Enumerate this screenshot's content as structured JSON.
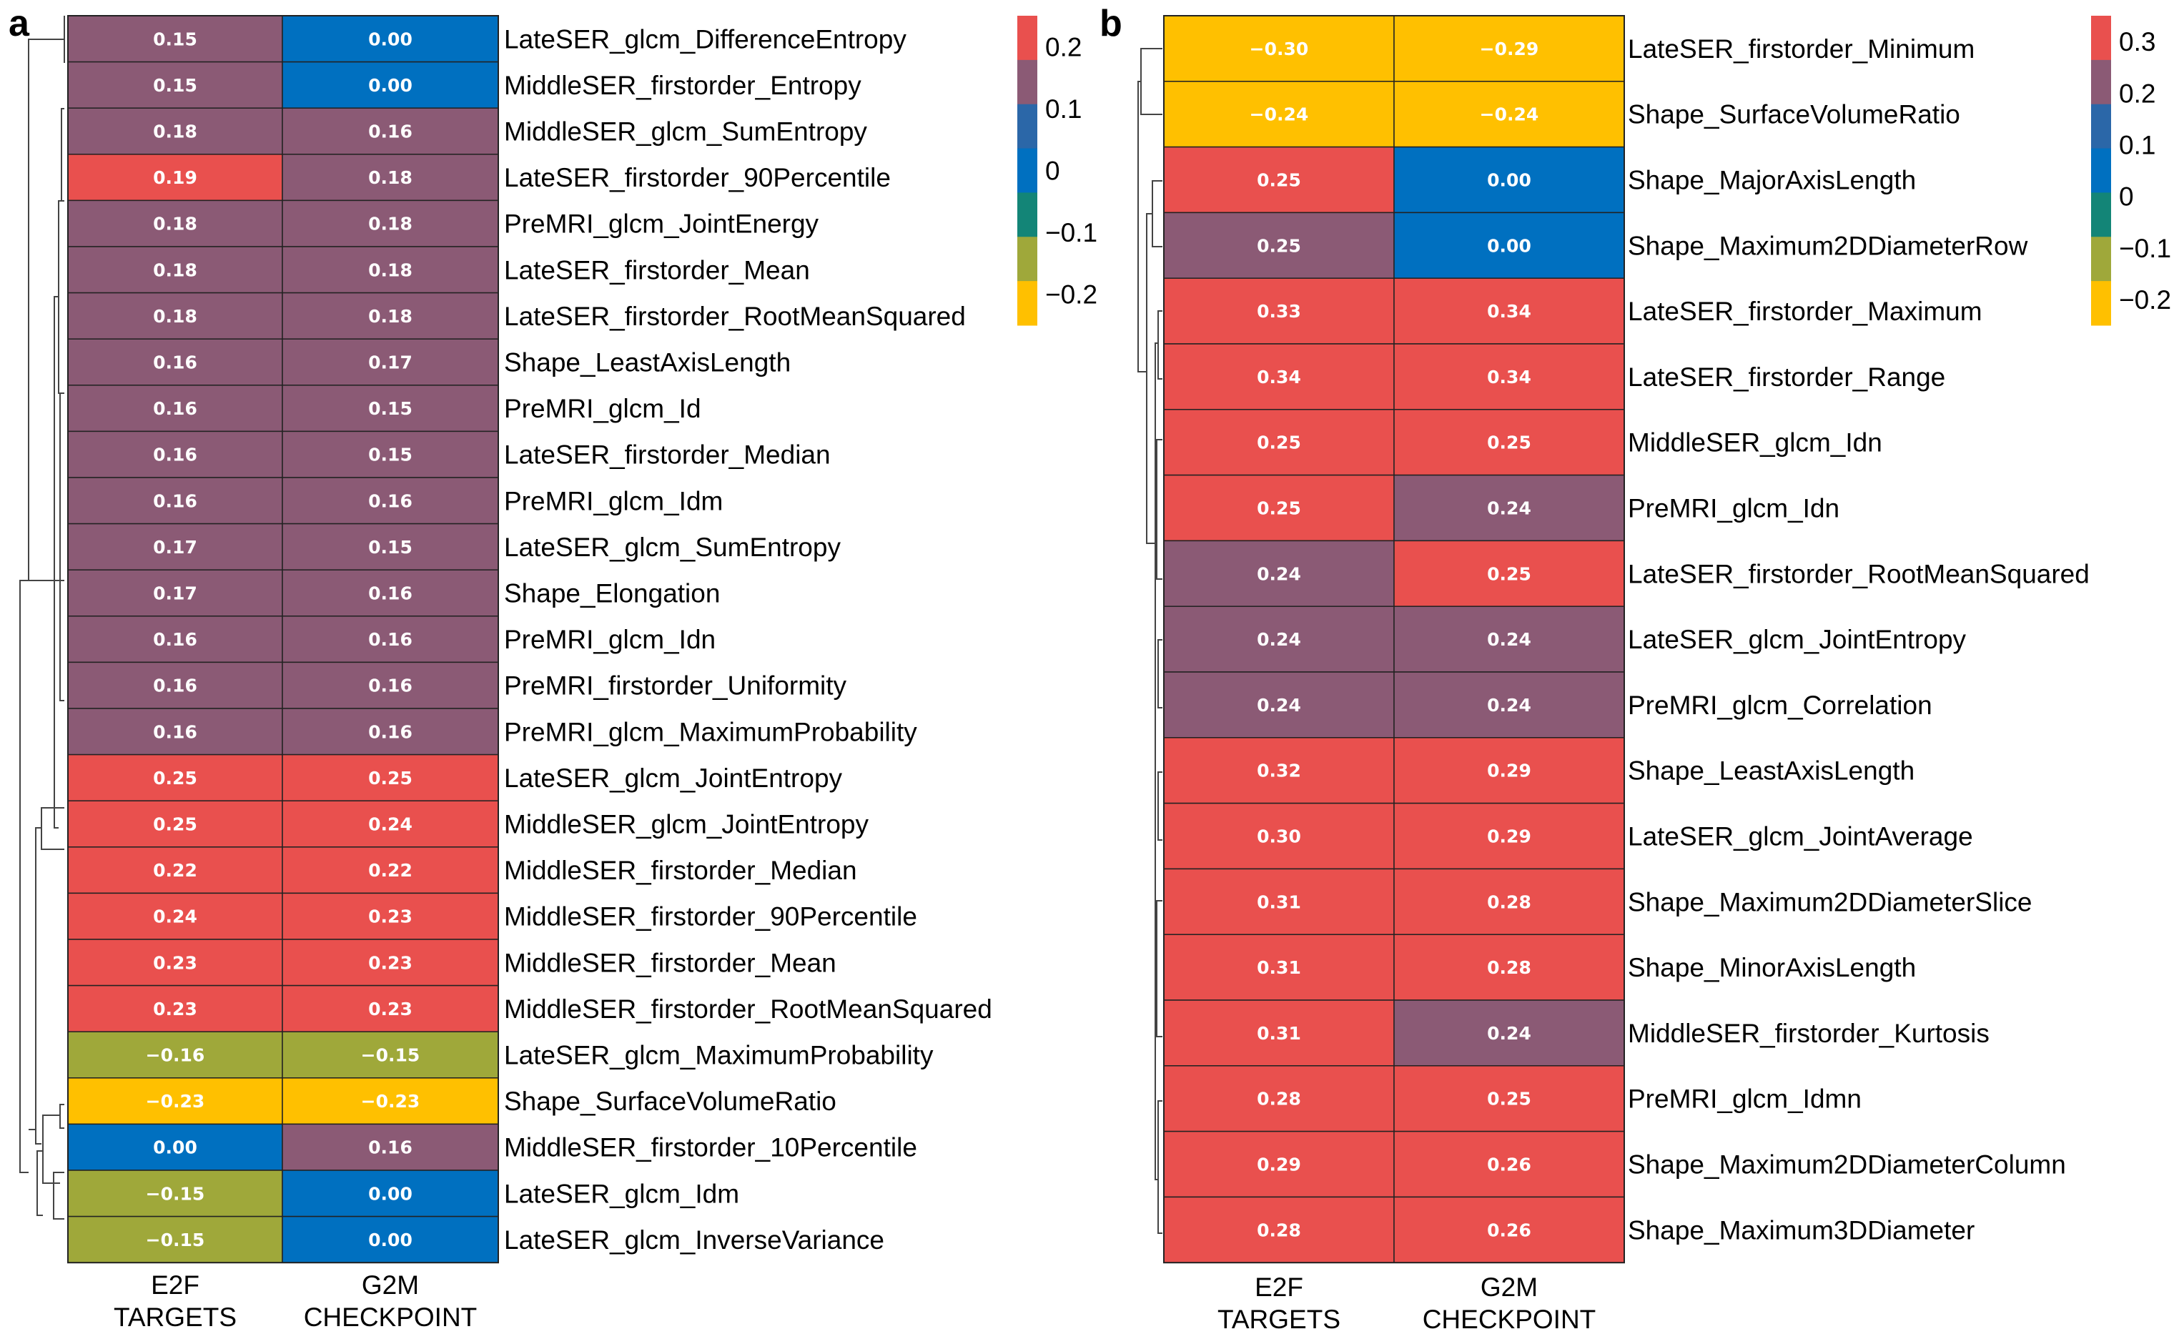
{
  "colors": {
    "lo2": "#FFC000",
    "lo1": "#9FA83A",
    "mid": "#138577",
    "zero": "#0070C0",
    "pos1": "#2B67A8",
    "pos2": "#8B5A75",
    "hi": "#E9504E"
  },
  "chart_data": [
    {
      "type": "heatmap",
      "panel": "a",
      "columns": [
        "E2F TARGETS",
        "G2M CHECKPOINT"
      ],
      "column_lines": [
        [
          "E2F",
          "TARGETS"
        ],
        [
          "G2M",
          "CHECKPOINT"
        ]
      ],
      "rows": [
        {
          "label": "LateSER_glcm_DifferenceEntropy",
          "values": [
            0.15,
            0.0
          ],
          "text": [
            "0.15",
            "0.00"
          ],
          "colors": [
            "pos2",
            "zero"
          ]
        },
        {
          "label": "MiddleSER_firstorder_Entropy",
          "values": [
            0.15,
            0.0
          ],
          "text": [
            "0.15",
            "0.00"
          ],
          "colors": [
            "pos2",
            "zero"
          ]
        },
        {
          "label": "MiddleSER_glcm_SumEntropy",
          "values": [
            0.18,
            0.16
          ],
          "text": [
            "0.18",
            "0.16"
          ],
          "colors": [
            "pos2",
            "pos2"
          ]
        },
        {
          "label": "LateSER_firstorder_90Percentile",
          "values": [
            0.19,
            0.18
          ],
          "text": [
            "0.19",
            "0.18"
          ],
          "colors": [
            "hi",
            "pos2"
          ]
        },
        {
          "label": "PreMRI_glcm_JointEnergy",
          "values": [
            0.18,
            0.18
          ],
          "text": [
            "0.18",
            "0.18"
          ],
          "colors": [
            "pos2",
            "pos2"
          ]
        },
        {
          "label": "LateSER_firstorder_Mean",
          "values": [
            0.18,
            0.18
          ],
          "text": [
            "0.18",
            "0.18"
          ],
          "colors": [
            "pos2",
            "pos2"
          ]
        },
        {
          "label": "LateSER_firstorder_RootMeanSquared",
          "values": [
            0.18,
            0.18
          ],
          "text": [
            "0.18",
            "0.18"
          ],
          "colors": [
            "pos2",
            "pos2"
          ]
        },
        {
          "label": "Shape_LeastAxisLength",
          "values": [
            0.16,
            0.17
          ],
          "text": [
            "0.16",
            "0.17"
          ],
          "colors": [
            "pos2",
            "pos2"
          ]
        },
        {
          "label": "PreMRI_glcm_Id",
          "values": [
            0.16,
            0.15
          ],
          "text": [
            "0.16",
            "0.15"
          ],
          "colors": [
            "pos2",
            "pos2"
          ]
        },
        {
          "label": "LateSER_firstorder_Median",
          "values": [
            0.16,
            0.15
          ],
          "text": [
            "0.16",
            "0.15"
          ],
          "colors": [
            "pos2",
            "pos2"
          ]
        },
        {
          "label": "PreMRI_glcm_Idm",
          "values": [
            0.16,
            0.16
          ],
          "text": [
            "0.16",
            "0.16"
          ],
          "colors": [
            "pos2",
            "pos2"
          ]
        },
        {
          "label": "LateSER_glcm_SumEntropy",
          "values": [
            0.17,
            0.15
          ],
          "text": [
            "0.17",
            "0.15"
          ],
          "colors": [
            "pos2",
            "pos2"
          ]
        },
        {
          "label": "Shape_Elongation",
          "values": [
            0.17,
            0.16
          ],
          "text": [
            "0.17",
            "0.16"
          ],
          "colors": [
            "pos2",
            "pos2"
          ]
        },
        {
          "label": "PreMRI_glcm_Idn",
          "values": [
            0.16,
            0.16
          ],
          "text": [
            "0.16",
            "0.16"
          ],
          "colors": [
            "pos2",
            "pos2"
          ]
        },
        {
          "label": "PreMRI_firstorder_Uniformity",
          "values": [
            0.16,
            0.16
          ],
          "text": [
            "0.16",
            "0.16"
          ],
          "colors": [
            "pos2",
            "pos2"
          ]
        },
        {
          "label": "PreMRI_glcm_MaximumProbability",
          "values": [
            0.16,
            0.16
          ],
          "text": [
            "0.16",
            "0.16"
          ],
          "colors": [
            "pos2",
            "pos2"
          ]
        },
        {
          "label": "LateSER_glcm_JointEntropy",
          "values": [
            0.25,
            0.25
          ],
          "text": [
            "0.25",
            "0.25"
          ],
          "colors": [
            "hi",
            "hi"
          ]
        },
        {
          "label": "MiddleSER_glcm_JointEntropy",
          "values": [
            0.25,
            0.24
          ],
          "text": [
            "0.25",
            "0.24"
          ],
          "colors": [
            "hi",
            "hi"
          ]
        },
        {
          "label": "MiddleSER_firstorder_Median",
          "values": [
            0.22,
            0.22
          ],
          "text": [
            "0.22",
            "0.22"
          ],
          "colors": [
            "hi",
            "hi"
          ]
        },
        {
          "label": "MiddleSER_firstorder_90Percentile",
          "values": [
            0.24,
            0.23
          ],
          "text": [
            "0.24",
            "0.23"
          ],
          "colors": [
            "hi",
            "hi"
          ]
        },
        {
          "label": "MiddleSER_firstorder_Mean",
          "values": [
            0.23,
            0.23
          ],
          "text": [
            "0.23",
            "0.23"
          ],
          "colors": [
            "hi",
            "hi"
          ]
        },
        {
          "label": "MiddleSER_firstorder_RootMeanSquared",
          "values": [
            0.23,
            0.23
          ],
          "text": [
            "0.23",
            "0.23"
          ],
          "colors": [
            "hi",
            "hi"
          ]
        },
        {
          "label": "LateSER_glcm_MaximumProbability",
          "values": [
            -0.16,
            -0.15
          ],
          "text": [
            "−0.16",
            "−0.15"
          ],
          "colors": [
            "lo1",
            "lo1"
          ]
        },
        {
          "label": "Shape_SurfaceVolumeRatio",
          "values": [
            -0.23,
            -0.23
          ],
          "text": [
            "−0.23",
            "−0.23"
          ],
          "colors": [
            "lo2",
            "lo2"
          ]
        },
        {
          "label": "MiddleSER_firstorder_10Percentile",
          "values": [
            0.0,
            0.16
          ],
          "text": [
            "0.00",
            "0.16"
          ],
          "colors": [
            "zero",
            "pos2"
          ]
        },
        {
          "label": "LateSER_glcm_Idm",
          "values": [
            -0.15,
            0.0
          ],
          "text": [
            "−0.15",
            "0.00"
          ],
          "colors": [
            "lo1",
            "zero"
          ]
        },
        {
          "label": "LateSER_glcm_InverseVariance",
          "values": [
            -0.15,
            0.0
          ],
          "text": [
            "−0.15",
            "0.00"
          ],
          "colors": [
            "lo1",
            "zero"
          ]
        }
      ],
      "legend": {
        "ticks": [
          "0.2",
          "0.1",
          "0",
          "−0.1",
          "−0.2"
        ],
        "tick_values": [
          0.2,
          0.1,
          0,
          -0.1,
          -0.2
        ],
        "range": [
          -0.25,
          0.25
        ],
        "bands": [
          "hi",
          "pos2",
          "pos1",
          "zero",
          "mid",
          "lo1",
          "lo2"
        ]
      }
    },
    {
      "type": "heatmap",
      "panel": "b",
      "columns": [
        "E2F TARGETS",
        "G2M CHECKPOINT"
      ],
      "column_lines": [
        [
          "E2F",
          "TARGETS"
        ],
        [
          "G2M",
          "CHECKPOINT"
        ]
      ],
      "rows": [
        {
          "label": "LateSER_firstorder_Minimum",
          "values": [
            -0.3,
            -0.29
          ],
          "text": [
            "−0.30",
            "−0.29"
          ],
          "colors": [
            "lo2",
            "lo2"
          ]
        },
        {
          "label": "Shape_SurfaceVolumeRatio",
          "values": [
            -0.24,
            -0.24
          ],
          "text": [
            "−0.24",
            "−0.24"
          ],
          "colors": [
            "lo2",
            "lo2"
          ]
        },
        {
          "label": "Shape_MajorAxisLength",
          "values": [
            0.25,
            0.0
          ],
          "text": [
            "0.25",
            "0.00"
          ],
          "colors": [
            "hi",
            "zero"
          ]
        },
        {
          "label": "Shape_Maximum2DDiameterRow",
          "values": [
            0.25,
            0.0
          ],
          "text": [
            "0.25",
            "0.00"
          ],
          "colors": [
            "pos2",
            "zero"
          ]
        },
        {
          "label": "LateSER_firstorder_Maximum",
          "values": [
            0.33,
            0.34
          ],
          "text": [
            "0.33",
            "0.34"
          ],
          "colors": [
            "hi",
            "hi"
          ]
        },
        {
          "label": "LateSER_firstorder_Range",
          "values": [
            0.34,
            0.34
          ],
          "text": [
            "0.34",
            "0.34"
          ],
          "colors": [
            "hi",
            "hi"
          ]
        },
        {
          "label": "MiddleSER_glcm_Idn",
          "values": [
            0.25,
            0.25
          ],
          "text": [
            "0.25",
            "0.25"
          ],
          "colors": [
            "hi",
            "hi"
          ]
        },
        {
          "label": "PreMRI_glcm_Idn",
          "values": [
            0.25,
            0.24
          ],
          "text": [
            "0.25",
            "0.24"
          ],
          "colors": [
            "hi",
            "pos2"
          ]
        },
        {
          "label": "LateSER_firstorder_RootMeanSquared",
          "values": [
            0.24,
            0.25
          ],
          "text": [
            "0.24",
            "0.25"
          ],
          "colors": [
            "pos2",
            "hi"
          ]
        },
        {
          "label": "LateSER_glcm_JointEntropy",
          "values": [
            0.24,
            0.24
          ],
          "text": [
            "0.24",
            "0.24"
          ],
          "colors": [
            "pos2",
            "pos2"
          ]
        },
        {
          "label": "PreMRI_glcm_Correlation",
          "values": [
            0.24,
            0.24
          ],
          "text": [
            "0.24",
            "0.24"
          ],
          "colors": [
            "pos2",
            "pos2"
          ]
        },
        {
          "label": "Shape_LeastAxisLength",
          "values": [
            0.32,
            0.29
          ],
          "text": [
            "0.32",
            "0.29"
          ],
          "colors": [
            "hi",
            "hi"
          ]
        },
        {
          "label": "LateSER_glcm_JointAverage",
          "values": [
            0.3,
            0.29
          ],
          "text": [
            "0.30",
            "0.29"
          ],
          "colors": [
            "hi",
            "hi"
          ]
        },
        {
          "label": "Shape_Maximum2DDiameterSlice",
          "values": [
            0.31,
            0.28
          ],
          "text": [
            "0.31",
            "0.28"
          ],
          "colors": [
            "hi",
            "hi"
          ]
        },
        {
          "label": "Shape_MinorAxisLength",
          "values": [
            0.31,
            0.28
          ],
          "text": [
            "0.31",
            "0.28"
          ],
          "colors": [
            "hi",
            "hi"
          ]
        },
        {
          "label": "MiddleSER_firstorder_Kurtosis",
          "values": [
            0.31,
            0.24
          ],
          "text": [
            "0.31",
            "0.24"
          ],
          "colors": [
            "hi",
            "pos2"
          ]
        },
        {
          "label": "PreMRI_glcm_Idmn",
          "values": [
            0.28,
            0.25
          ],
          "text": [
            "0.28",
            "0.25"
          ],
          "colors": [
            "hi",
            "hi"
          ]
        },
        {
          "label": "Shape_Maximum2DDiameterColumn",
          "values": [
            0.29,
            0.26
          ],
          "text": [
            "0.29",
            "0.26"
          ],
          "colors": [
            "hi",
            "hi"
          ]
        },
        {
          "label": "Shape_Maximum3DDiameter",
          "values": [
            0.28,
            0.26
          ],
          "text": [
            "0.28",
            "0.26"
          ],
          "colors": [
            "hi",
            "hi"
          ]
        }
      ],
      "legend": {
        "ticks": [
          "0.3",
          "0.2",
          "0.1",
          "0",
          "−0.1",
          "−0.2"
        ],
        "tick_values": [
          0.3,
          0.2,
          0.1,
          0,
          -0.1,
          -0.2
        ],
        "range": [
          -0.25,
          0.35
        ],
        "bands": [
          "hi",
          "pos2",
          "pos1",
          "zero",
          "mid",
          "lo1",
          "lo2"
        ]
      }
    }
  ]
}
